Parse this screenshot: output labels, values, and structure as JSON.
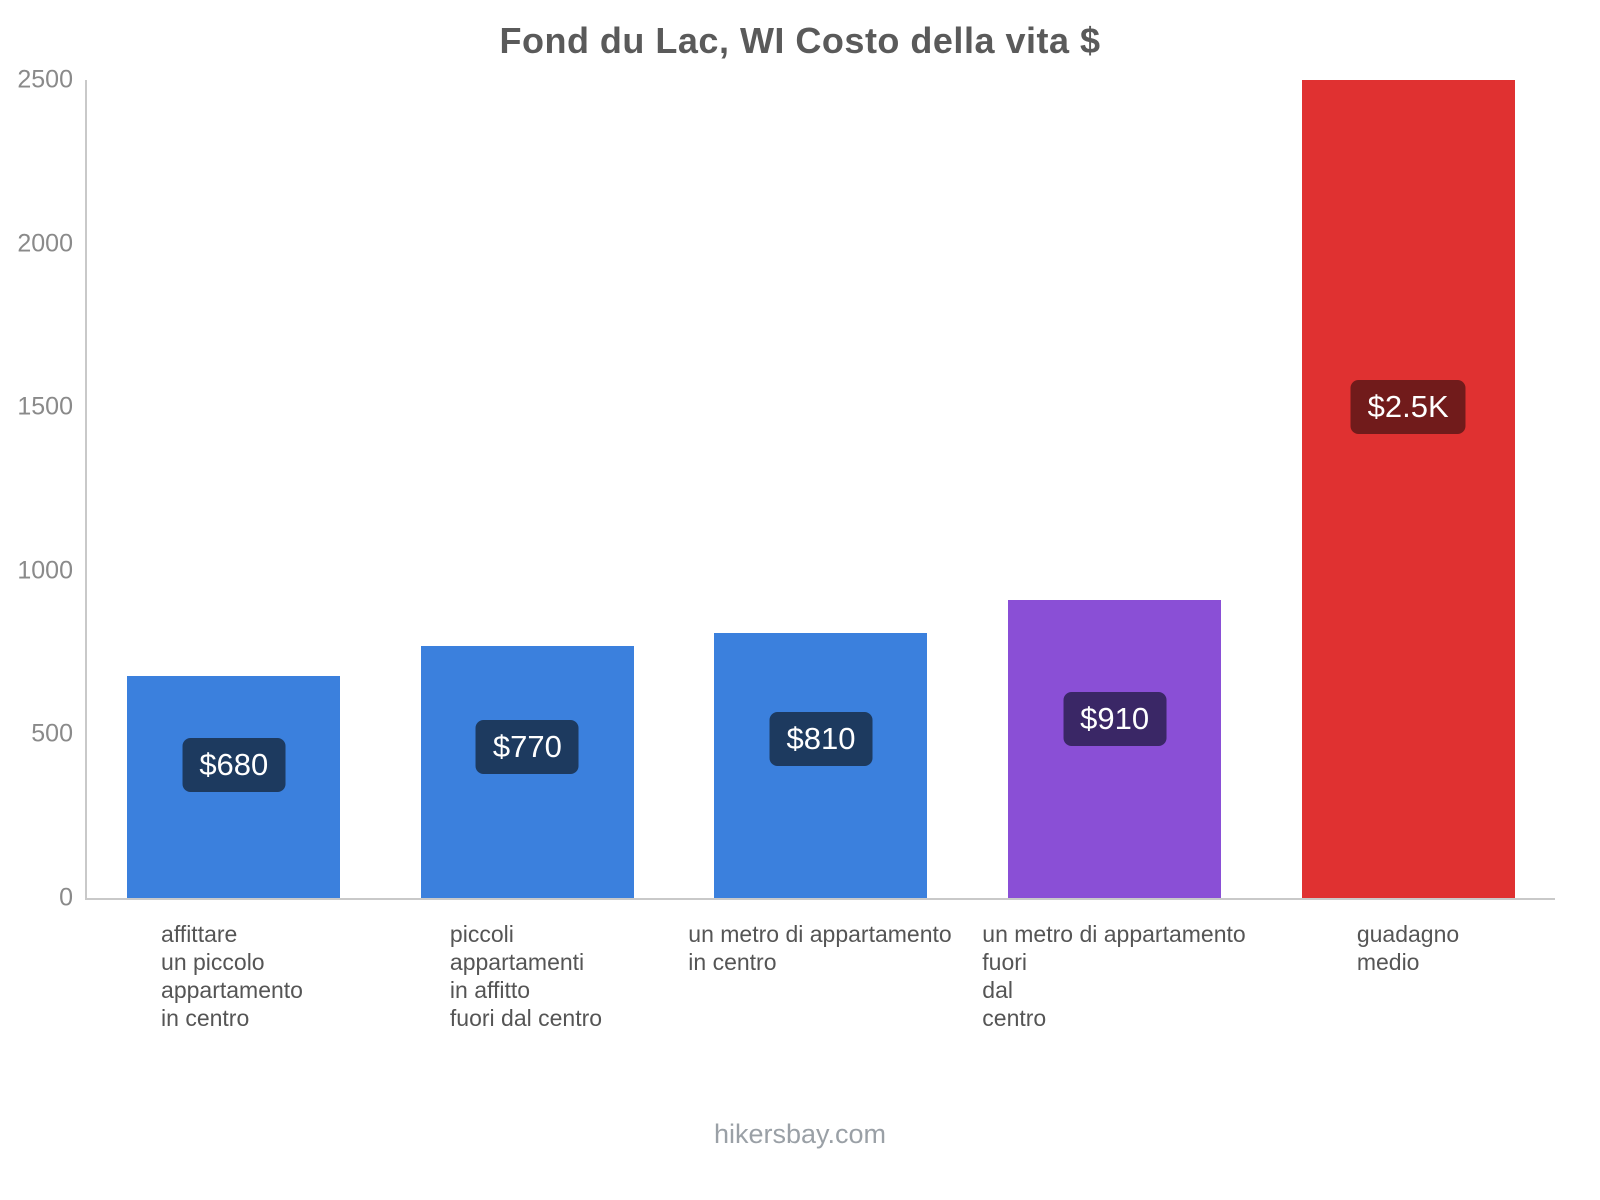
{
  "title": "Fond du Lac, WI Costo della vita $",
  "footer": "hikersbay.com",
  "chart_data": {
    "type": "bar",
    "title": "Fond du Lac, WI Costo della vita $",
    "ylim": [
      0,
      2500
    ],
    "yticks": [
      0,
      500,
      1000,
      1500,
      2000,
      2500
    ],
    "grid": false,
    "legend": "none",
    "categories": [
      "affittare\nun piccolo\nappartamento\nin centro",
      "piccoli\nappartamenti\nin affitto\nfuori dal centro",
      "un metro di appartamento\nin centro",
      "un metro di appartamento\nfuori\ndal\ncentro",
      "guadagno\nmedio"
    ],
    "values": [
      680,
      770,
      810,
      910,
      2500
    ],
    "value_labels": [
      "$680",
      "$770",
      "$810",
      "$910",
      "$2.5K"
    ],
    "bar_colors": [
      "#3b80dd",
      "#3b80dd",
      "#3b80dd",
      "#8a4fd6",
      "#e03131"
    ],
    "badge_colors": [
      "#1d3a5f",
      "#1d3a5f",
      "#1d3a5f",
      "#3a2766",
      "#711b1b"
    ]
  }
}
